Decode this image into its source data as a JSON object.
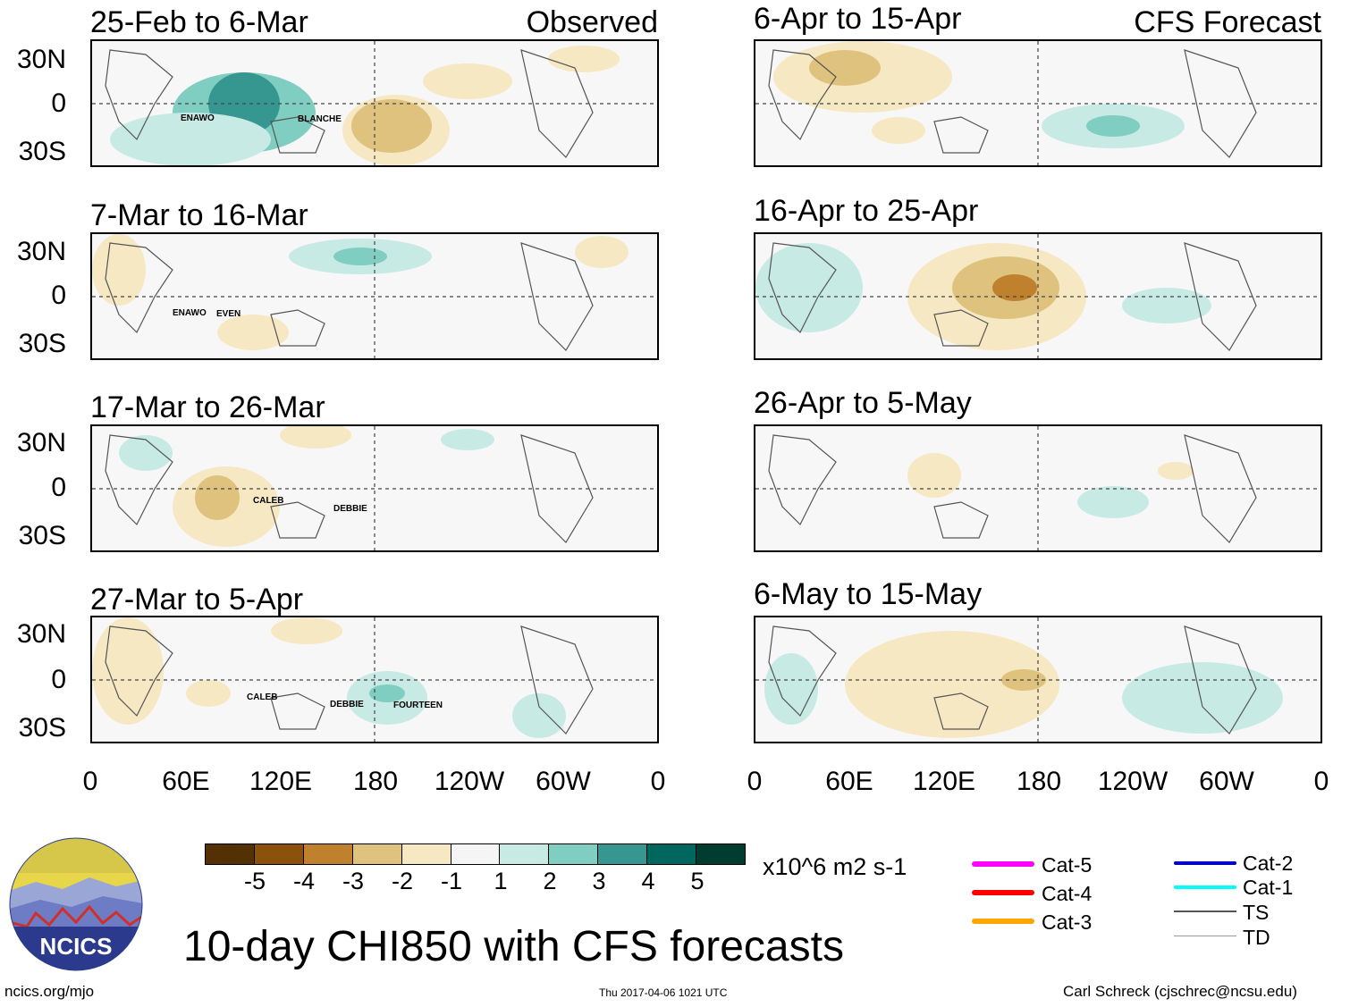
{
  "figure_title": "10-day CHI850 with CFS forecasts",
  "observed_tag": "Observed",
  "forecast_tag": "CFS Forecast",
  "lat_labels": [
    "30N",
    "0",
    "30S"
  ],
  "lon_labels": [
    "0",
    "60E",
    "120E",
    "180",
    "120W",
    "60W",
    "0"
  ],
  "units": "x10^6 m2 s-1",
  "colorbar": {
    "labels": [
      "-5",
      "-4",
      "-3",
      "-2",
      "-1",
      "1",
      "2",
      "3",
      "4",
      "5"
    ],
    "colors": [
      "#543005",
      "#8c510a",
      "#bf812d",
      "#dfc27d",
      "#f6e8c3",
      "#f5f5f5",
      "#c7eae5",
      "#80cdc1",
      "#35978f",
      "#01665e",
      "#003c30"
    ]
  },
  "panels": [
    {
      "id": "obs-1",
      "title": "25-Feb to 6-Mar",
      "storms": [
        {
          "name": "ENAWO"
        },
        {
          "name": "BLANCHE"
        }
      ]
    },
    {
      "id": "obs-2",
      "title": "7-Mar to 16-Mar",
      "storms": [
        {
          "name": "ENAWO"
        },
        {
          "name": "EVEN"
        }
      ]
    },
    {
      "id": "obs-3",
      "title": "17-Mar to 26-Mar",
      "storms": [
        {
          "name": "CALEB"
        },
        {
          "name": "DEBBIE"
        }
      ]
    },
    {
      "id": "obs-4",
      "title": "27-Mar to 5-Apr",
      "storms": [
        {
          "name": "CALEB"
        },
        {
          "name": "DEBBIE"
        },
        {
          "name": "FOURTEEN"
        }
      ]
    },
    {
      "id": "fc-1",
      "title": "6-Apr to 15-Apr",
      "storms": []
    },
    {
      "id": "fc-2",
      "title": "16-Apr to 25-Apr",
      "storms": []
    },
    {
      "id": "fc-3",
      "title": "26-Apr to 5-May",
      "storms": []
    },
    {
      "id": "fc-4",
      "title": "6-May to 15-May",
      "storms": []
    }
  ],
  "storm_legend": [
    {
      "label": "Cat-5",
      "color": "#ff00ff"
    },
    {
      "label": "Cat-4",
      "color": "#ff0000"
    },
    {
      "label": "Cat-3",
      "color": "#ffa500"
    },
    {
      "label": "Cat-2",
      "color": "#0000cc"
    },
    {
      "label": "Cat-1",
      "color": "#00ffff"
    },
    {
      "label": "TS",
      "color": "#555555"
    },
    {
      "label": "TD",
      "color": "#999999"
    }
  ],
  "logo_text": "NCICS",
  "footer": {
    "site": "ncics.org/mjo",
    "timestamp": "Thu 2017-04-06 1021 UTC",
    "author": "Carl Schreck (cjschrec@ncsu.edu)"
  }
}
